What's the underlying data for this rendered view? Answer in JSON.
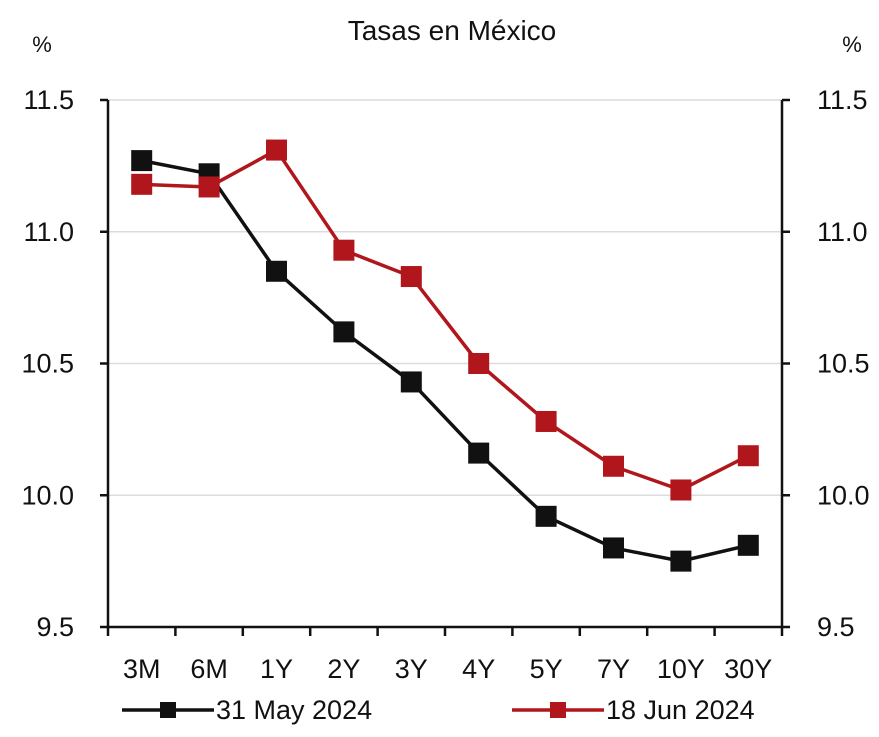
{
  "chart_data": {
    "type": "line",
    "title": "Tasas en México",
    "y_unit_left": "%",
    "y_unit_right": "%",
    "categories": [
      "3M",
      "6M",
      "1Y",
      "2Y",
      "3Y",
      "4Y",
      "5Y",
      "7Y",
      "10Y",
      "30Y"
    ],
    "ylim": [
      9.5,
      11.5
    ],
    "yticks": [
      "11.5",
      "11.0",
      "10.5",
      "10.0",
      "9.5"
    ],
    "grid": true,
    "legend_position": "bottom",
    "series": [
      {
        "name": "31 May 2024",
        "color": "#111111",
        "values": [
          11.27,
          11.22,
          10.85,
          10.62,
          10.43,
          10.16,
          9.92,
          9.8,
          9.75,
          9.81
        ]
      },
      {
        "name": "18 Jun 2024",
        "color": "#b0161b",
        "values": [
          11.18,
          11.17,
          11.31,
          10.93,
          10.83,
          10.5,
          10.28,
          10.11,
          10.02,
          10.15
        ]
      }
    ]
  }
}
